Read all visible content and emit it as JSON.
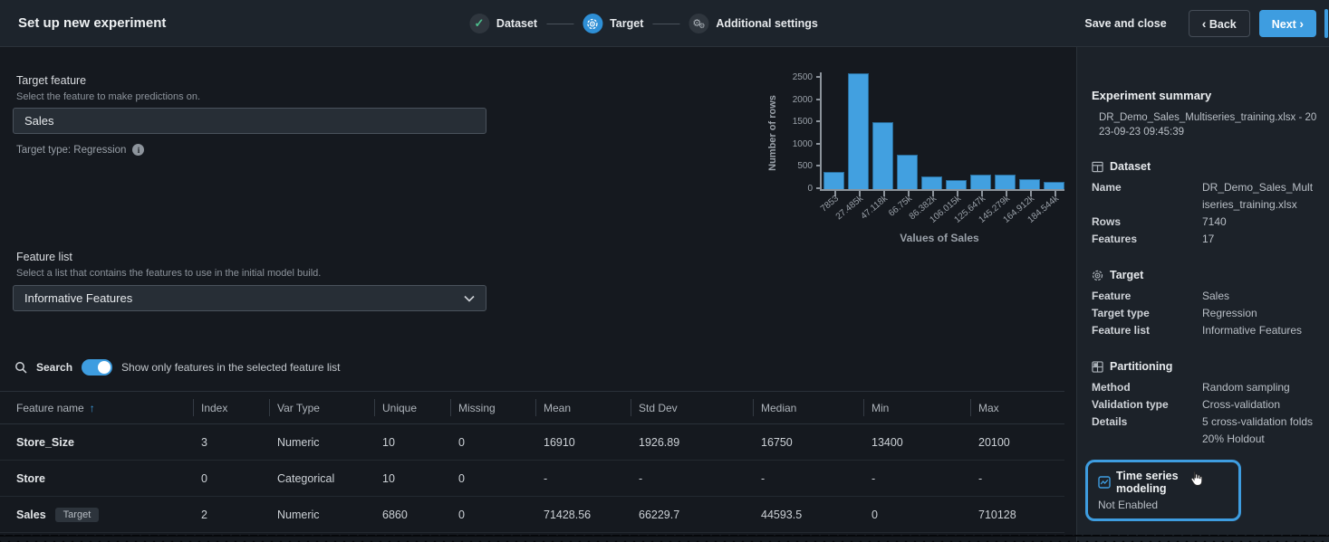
{
  "header": {
    "title": "Set up new experiment",
    "steps": [
      {
        "label": "Dataset",
        "state": "done"
      },
      {
        "label": "Target",
        "state": "active"
      },
      {
        "label": "Additional settings",
        "state": "pending"
      }
    ],
    "save_and_close": "Save and close",
    "back": "Back",
    "next": "Next"
  },
  "target_feature": {
    "label": "Target feature",
    "hint": "Select the feature to make predictions on.",
    "value": "Sales",
    "target_type": "Target type: Regression"
  },
  "chart_data": {
    "type": "bar",
    "title": "",
    "categories": [
      "7853",
      "27.485k",
      "47.118k",
      "66.75k",
      "86.382k",
      "106.015k",
      "125.647k",
      "145.279k",
      "164.912k",
      "184.544k"
    ],
    "values": [
      390,
      2600,
      1510,
      770,
      290,
      210,
      320,
      330,
      230,
      160
    ],
    "xlabel": "Values of Sales",
    "ylabel": "Number of rows",
    "yticks": [
      0,
      500,
      1000,
      1500,
      2000,
      2500
    ],
    "ylim": [
      0,
      2500
    ],
    "grid": false,
    "legend": false,
    "bar_color": "#42a0e0"
  },
  "feature_list": {
    "label": "Feature list",
    "hint": "Select a list that contains the features to use in the initial model build.",
    "selected": "Informative Features"
  },
  "filter_bar": {
    "search_label": "Search",
    "toggle_on": true,
    "toggle_label": "Show only features in the selected feature list"
  },
  "table": {
    "columns": [
      "Feature name",
      "Index",
      "Var Type",
      "Unique",
      "Missing",
      "Mean",
      "Std Dev",
      "Median",
      "Min",
      "Max"
    ],
    "sorted_column": "Feature name",
    "sort_direction": "ascending",
    "rows": [
      {
        "name": "Store_Size",
        "badge": null,
        "cells": [
          "3",
          "Numeric",
          "10",
          "0",
          "16910",
          "1926.89",
          "16750",
          "13400",
          "20100"
        ]
      },
      {
        "name": "Store",
        "badge": null,
        "cells": [
          "0",
          "Categorical",
          "10",
          "0",
          "-",
          "-",
          "-",
          "-",
          "-"
        ]
      },
      {
        "name": "Sales",
        "badge": "Target",
        "cells": [
          "2",
          "Numeric",
          "6860",
          "0",
          "71428.56",
          "66229.7",
          "44593.5",
          "0",
          "710128"
        ]
      }
    ]
  },
  "summary": {
    "title": "Experiment summary",
    "subtitle": "DR_Demo_Sales_Multiseries_training.xlsx - 2023-09-23 09:45:39",
    "sections": [
      {
        "icon": "dataset",
        "title": "Dataset",
        "rows": [
          [
            "Name",
            "DR_Demo_Sales_Multiseries_training.xlsx"
          ],
          [
            "Rows",
            "7140"
          ],
          [
            "Features",
            "17"
          ]
        ]
      },
      {
        "icon": "target",
        "title": "Target",
        "rows": [
          [
            "Feature",
            "Sales"
          ],
          [
            "Target type",
            "Regression"
          ],
          [
            "Feature list",
            "Informative Features"
          ]
        ]
      },
      {
        "icon": "partitioning",
        "title": "Partitioning",
        "rows": [
          [
            "Method",
            "Random sampling"
          ],
          [
            "Validation type",
            "Cross-validation"
          ],
          [
            "Details",
            "5 cross-validation folds\n20% Holdout"
          ]
        ]
      }
    ],
    "time_series": {
      "title": "Time series modeling",
      "status": "Not Enabled"
    }
  },
  "colors": {
    "accent_blue": "#3e9de0",
    "bar_blue": "#42a0e0",
    "success_green": "#4dbd8c",
    "header_bg": "#1d242c",
    "main_bg": "#15191f",
    "sidebar_bg": "#1c2229"
  }
}
